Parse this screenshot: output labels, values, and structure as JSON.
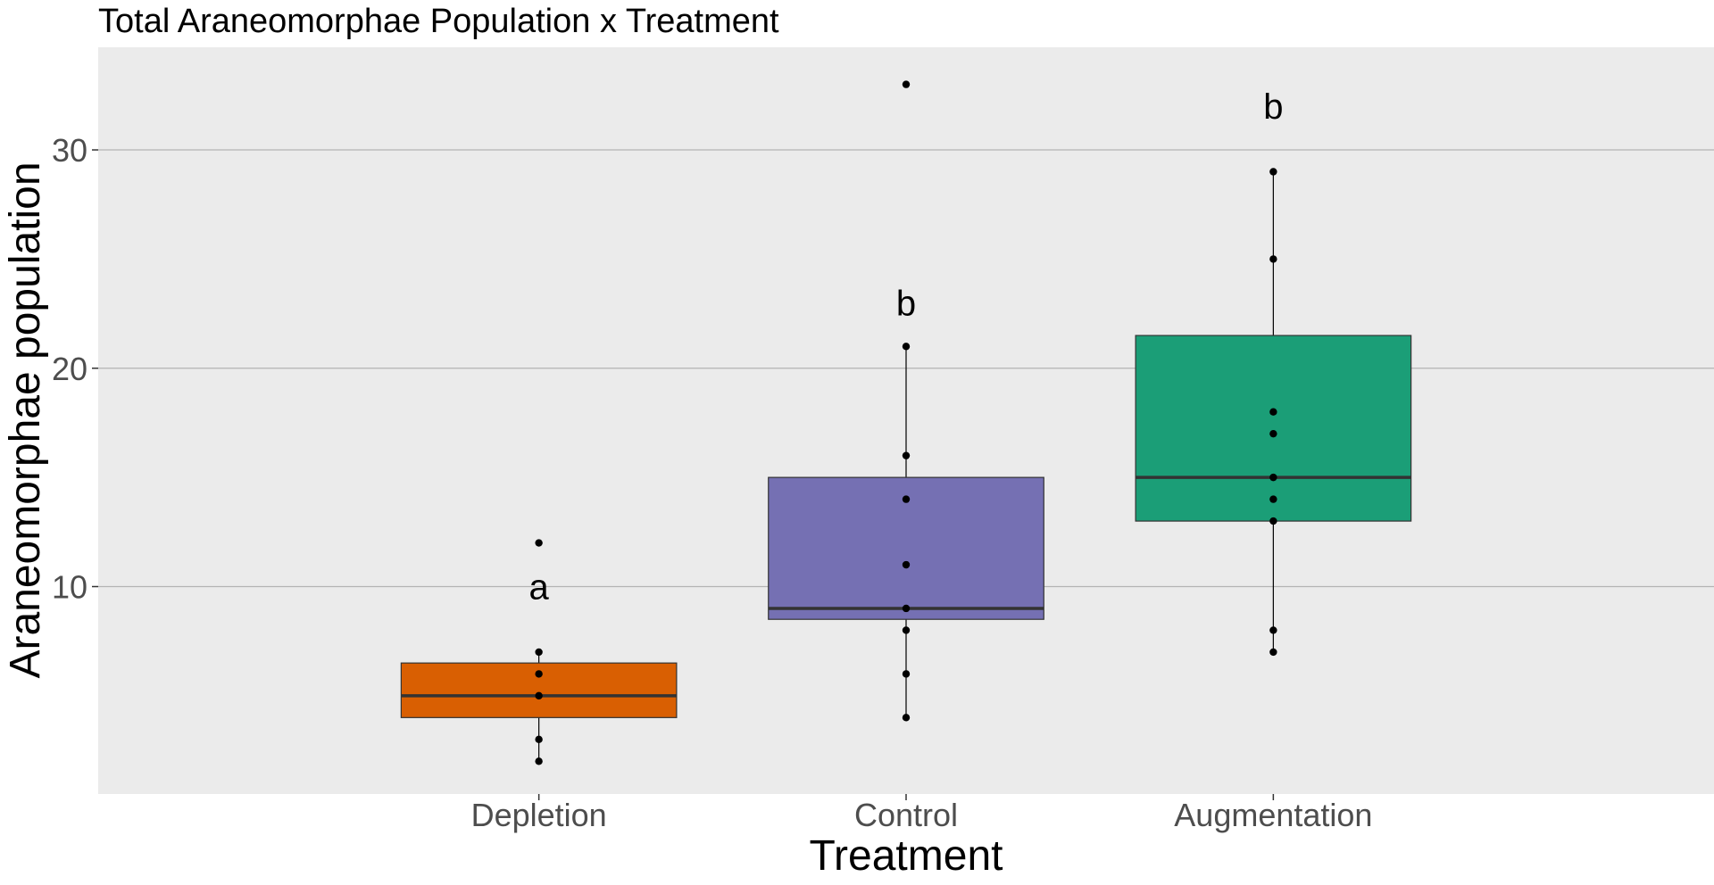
{
  "chart_data": {
    "type": "boxplot",
    "title": "Total Araneomorphae Population x Treatment",
    "xlabel": "Treatment",
    "ylabel": "Araneomorphae population",
    "categories": [
      "Depletion",
      "Control",
      "Augmentation"
    ],
    "ylim": [
      0.5,
      34.7
    ],
    "y_ticks": [
      10,
      20,
      30
    ],
    "grid": "horizontal major lines",
    "legend": "none",
    "colors": {
      "panel_background": "#ebebeb",
      "grid": "#b3b3b3",
      "Depletion": "#d95f02",
      "Control": "#7570b3",
      "Augmentation": "#1b9e77",
      "median": "#333333",
      "points": "#000000"
    },
    "boxes": [
      {
        "category": "Depletion",
        "q1": 4,
        "median": 5,
        "q3": 6.5,
        "whisker_low": 2,
        "whisker_high": 7,
        "letter": "a",
        "letter_y": 10
      },
      {
        "category": "Control",
        "q1": 8.5,
        "median": 9,
        "q3": 15,
        "whisker_low": 4,
        "whisker_high": 21,
        "letter": "b",
        "letter_y": 23
      },
      {
        "category": "Augmentation",
        "q1": 13,
        "median": 15,
        "q3": 21.5,
        "whisker_low": 7,
        "whisker_high": 29,
        "letter": "b",
        "letter_y": 32
      }
    ],
    "points": {
      "Depletion": [
        12,
        7,
        6,
        5,
        3,
        2
      ],
      "Control": [
        33,
        21,
        16,
        14,
        11,
        9,
        8,
        6,
        4
      ],
      "Augmentation": [
        29,
        25,
        18,
        17,
        15,
        14,
        13,
        8,
        7
      ]
    }
  }
}
